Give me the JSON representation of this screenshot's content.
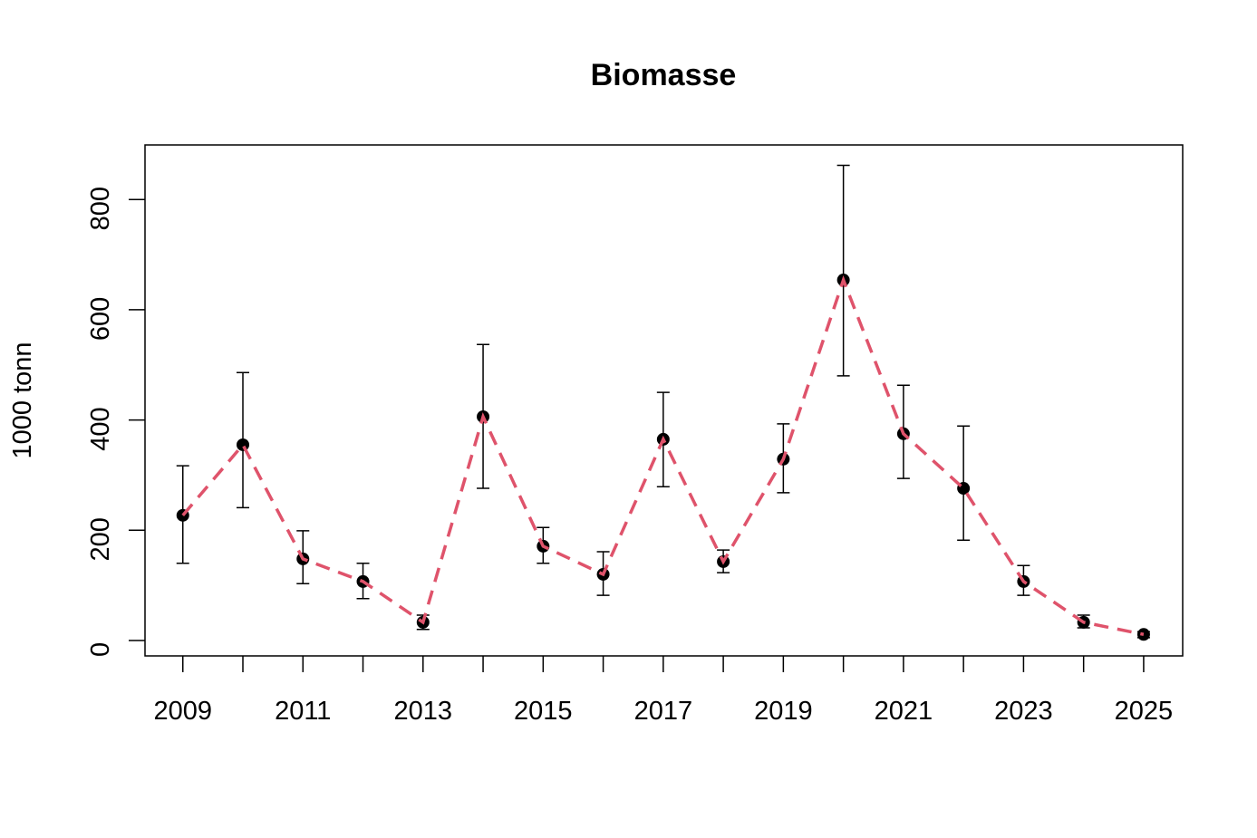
{
  "chart_data": {
    "type": "line",
    "title": "Biomasse",
    "y_label": "1000 tonn",
    "x": [
      2009,
      2010,
      2011,
      2012,
      2013,
      2014,
      2015,
      2016,
      2017,
      2018,
      2019,
      2020,
      2021,
      2022,
      2023,
      2024,
      2025
    ],
    "series": [
      {
        "values": [
          227,
          355,
          148,
          107,
          33,
          406,
          171,
          120,
          365,
          143,
          329,
          654,
          375,
          276,
          107,
          33,
          11
        ],
        "lower": [
          140,
          241,
          103,
          76,
          20,
          276,
          140,
          82,
          279,
          123,
          268,
          480,
          294,
          182,
          82,
          23,
          5
        ],
        "upper": [
          317,
          486,
          199,
          140,
          46,
          537,
          205,
          161,
          450,
          164,
          393,
          862,
          463,
          389,
          136,
          46,
          16
        ],
        "color": "#DF536B",
        "point_color": "#000000"
      }
    ],
    "xlim": [
      2008.37,
      2025.65
    ],
    "ylim": [
      -28,
      899
    ],
    "xticks": [
      2009,
      2011,
      2013,
      2015,
      2017,
      2019,
      2021,
      2023,
      2025
    ],
    "xticks_minor": [
      2010,
      2012,
      2014,
      2016,
      2018,
      2020,
      2022,
      2024
    ],
    "yticks": [
      0,
      200,
      400,
      600,
      800
    ],
    "grid": false
  }
}
